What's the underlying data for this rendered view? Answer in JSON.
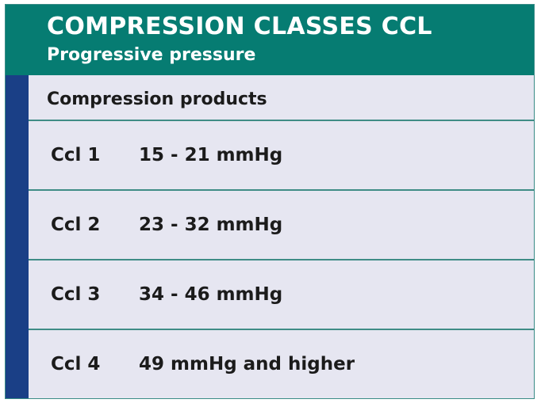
{
  "header": {
    "title": "COMPRESSION CLASSES CCL",
    "subtitle": "Progressive pressure"
  },
  "section": {
    "title": "Compression products"
  },
  "rows": [
    {
      "class": "Ccl 1",
      "pressure": "15 - 21 mmHg"
    },
    {
      "class": "Ccl 2",
      "pressure": "23 - 32 mmHg"
    },
    {
      "class": "Ccl 3",
      "pressure": "34 - 46 mmHg"
    },
    {
      "class": "Ccl 4",
      "pressure": "49 mmHg and higher"
    }
  ],
  "colors": {
    "header_background": "#067c72",
    "side_bar": "#1a3f86",
    "panel_background": "#e6e6f1",
    "divider": "#3f8c86"
  }
}
